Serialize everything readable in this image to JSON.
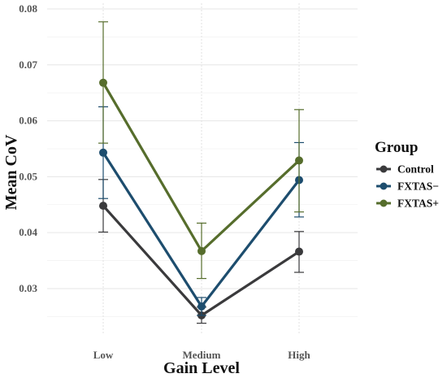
{
  "chart_data": {
    "type": "line",
    "categories": [
      "Low",
      "Medium",
      "High"
    ],
    "xlabel": "Gain Level",
    "ylabel": "Mean CoV",
    "ylim": [
      0.022,
      0.08
    ],
    "yticks": [
      "0.03",
      "0.04",
      "0.05",
      "0.06",
      "0.07",
      "0.08"
    ],
    "grid": true,
    "legend": {
      "title": "Group",
      "position": "right"
    },
    "series": [
      {
        "name": "Control",
        "color": "#3a3a3c",
        "values": [
          0.0448,
          0.0252,
          0.0366
        ],
        "error_low": [
          0.0401,
          0.0238,
          0.0329
        ],
        "error_high": [
          0.0495,
          0.0267,
          0.0402
        ]
      },
      {
        "name": "FXTAS−",
        "color": "#1d4d6e",
        "values": [
          0.0543,
          0.0268,
          0.0494
        ],
        "error_low": [
          0.0461,
          0.0252,
          0.0428
        ],
        "error_high": [
          0.0625,
          0.0284,
          0.0561
        ]
      },
      {
        "name": "FXTAS+",
        "color": "#566d2c",
        "values": [
          0.0668,
          0.0367,
          0.0529
        ],
        "error_low": [
          0.056,
          0.0318,
          0.0437
        ],
        "error_high": [
          0.0777,
          0.0417,
          0.062
        ]
      }
    ]
  }
}
